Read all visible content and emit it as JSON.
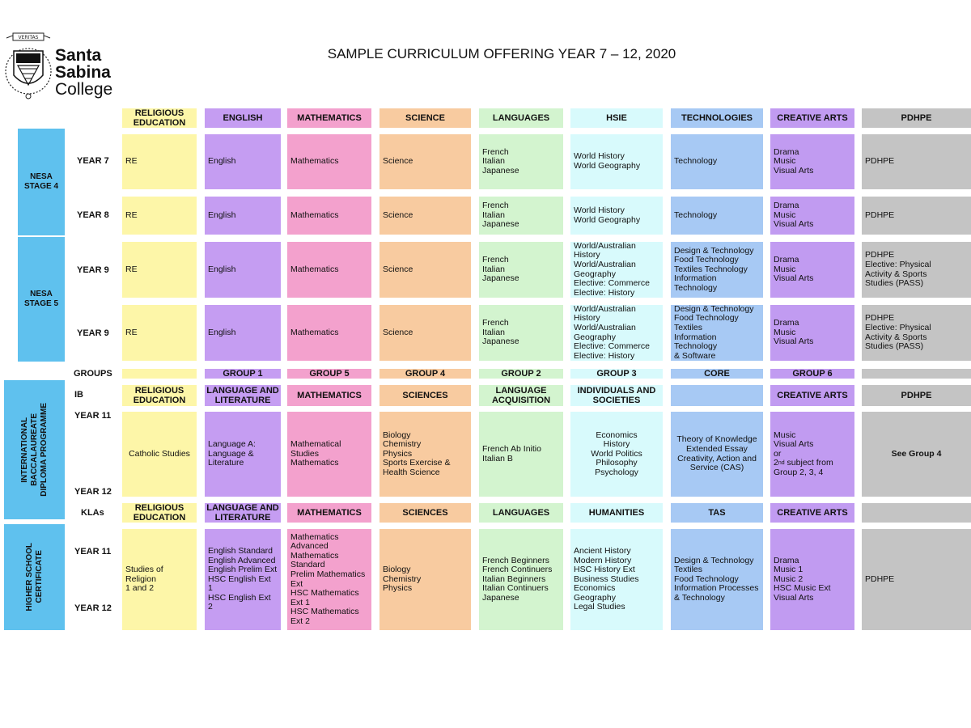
{
  "logo": {
    "motto": "VERITAS",
    "line1": "Santa",
    "line2": "Sabina",
    "line3": "College"
  },
  "title": "SAMPLE CURRICULUM OFFERING YEAR 7 – 12, 2020",
  "headers": [
    "RELIGIOUS\nEDUCATION",
    "ENGLISH",
    "MATHEMATICS",
    "SCIENCE",
    "LANGUAGES",
    "HSIE",
    "TECHNOLOGIES",
    "CREATIVE ARTS",
    "PDHPE"
  ],
  "side": {
    "stage4": "NESA\nSTAGE 4",
    "stage5": "NESA\nSTAGE 5",
    "ib": "INTERNATIONAL\nBACCALAUREATE\nDIPLOMA PROGRAMME",
    "hsc": "HIGHER SCHOOL\nCERTIFICATE"
  },
  "labels": {
    "y7": "YEAR 7",
    "y8": "YEAR 8",
    "y9a": "YEAR 9",
    "y9b": "YEAR 9",
    "groups": "GROUPS",
    "ib": "IB",
    "y11a": "YEAR 11",
    "y12a": "YEAR 12",
    "klas": "KLAs",
    "y11b": "YEAR 11",
    "y12b": "YEAR 12"
  },
  "y7": [
    "RE",
    "English",
    "Mathematics",
    "Science",
    "French\nItalian\nJapanese",
    "World History\nWorld Geography",
    "Technology",
    "Drama\nMusic\nVisual Arts",
    "PDHPE"
  ],
  "y8": [
    "RE",
    "English",
    "Mathematics",
    "Science",
    "French\nItalian\nJapanese",
    "World History\nWorld Geography",
    "Technology",
    "Drama\nMusic\nVisual Arts",
    "PDHPE"
  ],
  "y9a": [
    "RE",
    "English",
    "Mathematics",
    "Science",
    "French\nItalian\nJapanese",
    "World/Australian\nHistory\nWorld/Australian\nGeography\nElective: Commerce\nElective: History",
    "Design & Technology\nFood Technology\nTextiles Technology\nInformation Technology",
    "Drama\nMusic\nVisual Arts",
    "PDHPE\nElective: Physical\nActivity & Sports\nStudies (PASS)"
  ],
  "y9b": [
    "RE",
    "English",
    "Mathematics",
    "Science",
    "French\nItalian\nJapanese",
    "World/Australian\nHistory\nWorld/Australian\nGeography\nElective: Commerce\nElective: History",
    "Design & Technology\nFood Technology\nTextiles\nInformation Technology\n& Software",
    "Drama\nMusic\nVisual Arts",
    "PDHPE\nElective: Physical\nActivity & Sports\nStudies (PASS)"
  ],
  "groups": [
    "",
    "GROUP 1",
    "GROUP 5",
    "GROUP 4",
    "GROUP 2",
    "GROUP 3",
    "CORE",
    "GROUP 6",
    ""
  ],
  "ibhead": [
    "RELIGIOUS\nEDUCATION",
    "LANGUAGE AND\nLITERATURE",
    "MATHEMATICS",
    "SCIENCES",
    "LANGUAGE\nACQUISITION",
    "INDIVIDUALS AND\nSOCIETIES",
    "",
    "CREATIVE ARTS",
    "PDHPE"
  ],
  "ib": {
    "re": "Catholic Studies",
    "eng": "Language  A:\nLanguage &\nLiterature",
    "math": "Mathematical Studies\nMathematics",
    "sci": "Biology\nChemistry\nPhysics\nSports Exercise &\nHealth Science",
    "lang": "French Ab Initio\nItalian B",
    "hsie": "Economics\nHistory\nWorld Politics\nPhilosophy\nPsychology",
    "core": "Theory of Knowledge\nExtended Essay\nCreativity, Action and\nService (CAS)",
    "arts_a": "Music\nVisual Arts\nor",
    "arts_sup": "nd",
    "arts_b": "2",
    "arts_c": " subject from",
    "arts_d": "Group 2, 3, 4",
    "pdhpe": "See Group 4"
  },
  "klahead": [
    "RELIGIOUS\nEDUCATION",
    "LANGUAGE AND\nLITERATURE",
    "MATHEMATICS",
    "SCIENCES",
    "LANGUAGES",
    "HUMANITIES",
    "TAS",
    "CREATIVE ARTS",
    ""
  ],
  "hsc": [
    "Studies of Religion\n1 and 2",
    "English Standard\nEnglish Advanced\nEnglish Prelim Ext\nHSC English Ext 1\nHSC English Ext 2",
    "Mathematics\nAdvanced\nMathematics\nStandard\nPrelim Mathematics\nExt\nHSC Mathematics\nExt 1\nHSC Mathematics\nExt 2",
    "Biology\nChemistry\nPhysics",
    "French Beginners\nFrench Continuers\nItalian Beginners\nItalian Continuers\nJapanese",
    "Ancient History\nModern History\nHSC History Ext\nBusiness Studies\nEconomics\nGeography\nLegal Studies",
    "Design & Technology\nTextiles\nFood Technology\nInformation Processes\n& Technology",
    "Drama\nMusic 1\nMusic 2\nHSC Music Ext\nVisual Arts",
    "PDHPE"
  ],
  "colors": {
    "re": "#fdf6a8",
    "english": "#c59df2",
    "math": "#f3a1cd",
    "science": "#f8cba0",
    "languages": "#d3f4cf",
    "hsie": "#d8fafc",
    "tech": "#a7c9f4",
    "arts": "#c19bf1",
    "pdhpe": "#c4c4c4",
    "side": "#5fc1ee"
  }
}
